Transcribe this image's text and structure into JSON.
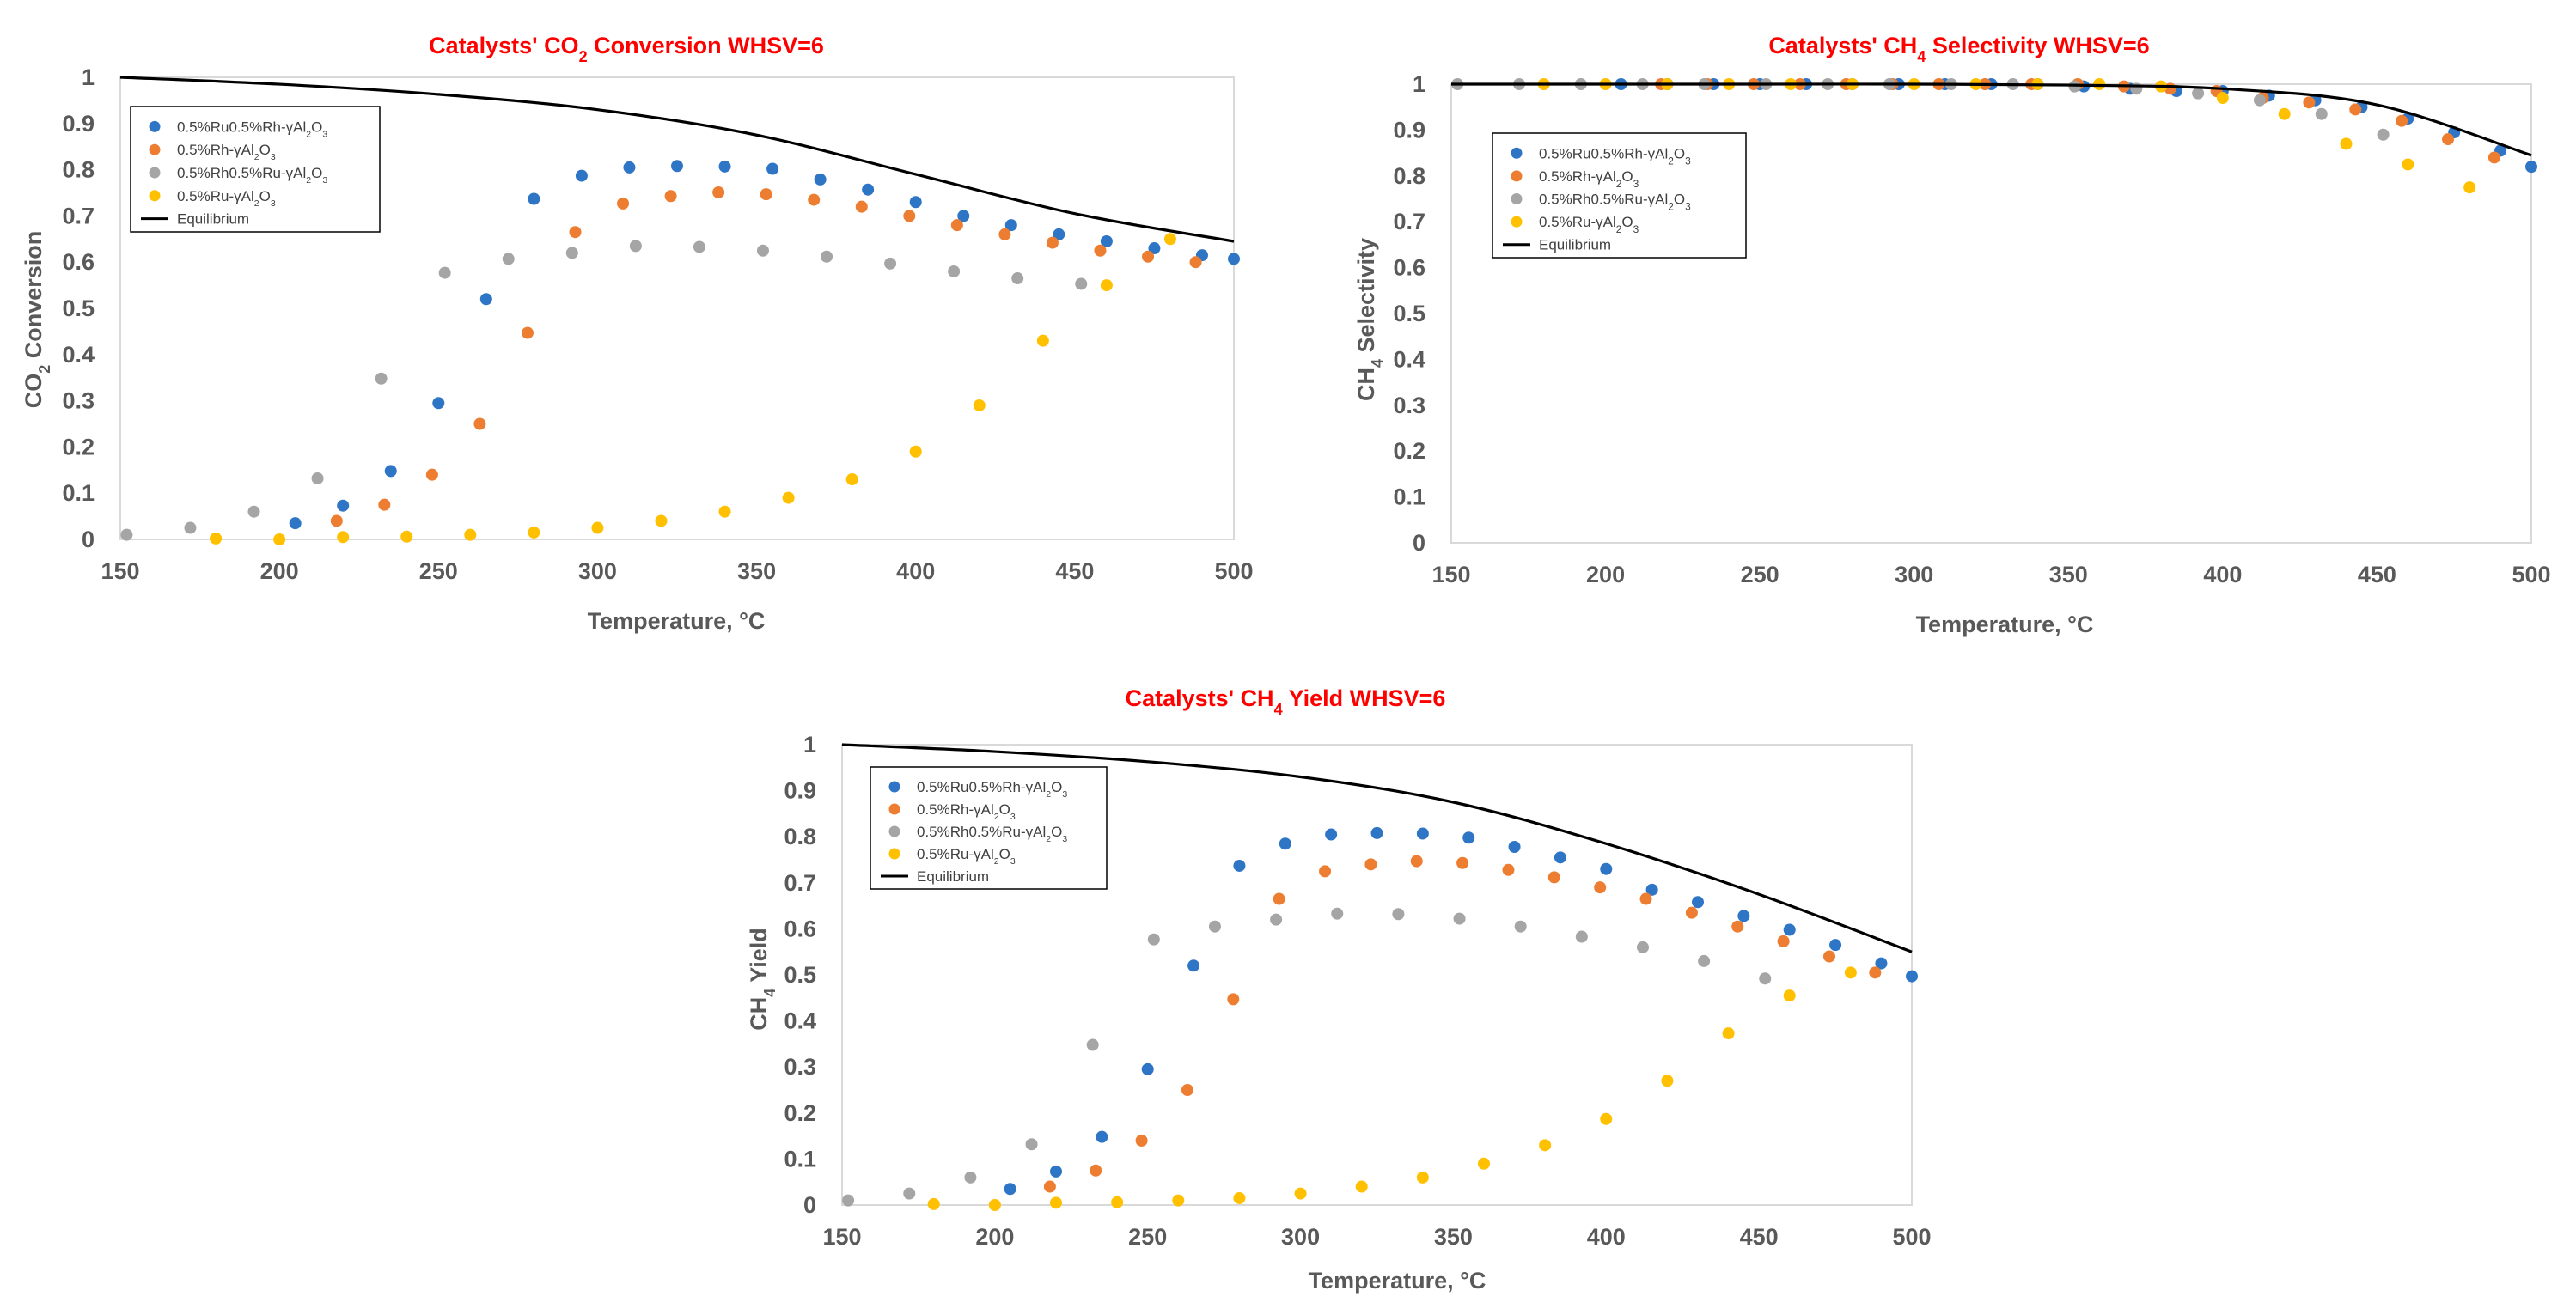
{
  "colors": {
    "s1": "#2e75c6",
    "s2": "#ed7d31",
    "s3": "#a5a5a5",
    "s4": "#ffc000",
    "eq": "#000000",
    "title": "#ff0000",
    "axis": "#d9d9d9",
    "text": "#595959"
  },
  "legend_labels": [
    {
      "prefix": "0.5%Ru0.5%Rh-γAl",
      "sub1": "2",
      "mid": "O",
      "sub2": "3"
    },
    {
      "prefix": "0.5%Rh-γAl",
      "sub1": "2",
      "mid": "O",
      "sub2": "3"
    },
    {
      "prefix": "0.5%Rh0.5%Ru-γAl",
      "sub1": "2",
      "mid": "O",
      "sub2": "3"
    },
    {
      "prefix": "0.5%Ru-γAl",
      "sub1": "2",
      "mid": "O",
      "sub2": "3"
    },
    {
      "prefix": "Equilibrium",
      "sub1": "",
      "mid": "",
      "sub2": ""
    }
  ],
  "chart_data": [
    {
      "type": "scatter",
      "title": {
        "pre": "Catalysts' CO",
        "sub": "2",
        "post": " Conversion WHSV=6"
      },
      "xlabel": "Temperature, °C",
      "ylabel": {
        "pre": "CO",
        "sub": "2",
        "post": " Conversion"
      },
      "xlim": [
        150,
        500
      ],
      "ylim": [
        0,
        1
      ],
      "xticks": [
        "150",
        "200",
        "250",
        "300",
        "350",
        "400",
        "450",
        "500"
      ],
      "yticks": [
        "0",
        "0.1",
        "0.2",
        "0.3",
        "0.4",
        "0.5",
        "0.6",
        "0.7",
        "0.8",
        "0.9",
        "1"
      ],
      "series": [
        {
          "name": "0.5%Ru0.5%Rh-γAl2O3",
          "x": [
            205,
            220,
            235,
            250,
            265,
            280,
            295,
            310,
            325,
            340,
            355,
            370,
            385,
            400,
            415,
            430,
            445,
            460,
            475,
            490,
            500
          ],
          "y": [
            0.035,
            0.073,
            0.148,
            0.295,
            0.52,
            0.737,
            0.787,
            0.805,
            0.808,
            0.807,
            0.802,
            0.779,
            0.757,
            0.73,
            0.7,
            0.68,
            0.66,
            0.645,
            0.63,
            0.615,
            0.607
          ]
        },
        {
          "name": "0.5%Rh-γAl2O3",
          "x": [
            218,
            233,
            248,
            263,
            278,
            293,
            308,
            323,
            338,
            353,
            368,
            383,
            398,
            413,
            428,
            443,
            458,
            473,
            488
          ],
          "y": [
            0.04,
            0.075,
            0.14,
            0.25,
            0.447,
            0.665,
            0.727,
            0.743,
            0.751,
            0.747,
            0.735,
            0.72,
            0.7,
            0.68,
            0.66,
            0.642,
            0.625,
            0.612,
            0.6
          ]
        },
        {
          "name": "0.5%Rh0.5%Ru-γAl2O3",
          "x": [
            152,
            172,
            192,
            212,
            232,
            252,
            272,
            292,
            312,
            332,
            352,
            372,
            392,
            412,
            432,
            452
          ],
          "y": [
            0.01,
            0.025,
            0.06,
            0.132,
            0.348,
            0.577,
            0.607,
            0.62,
            0.635,
            0.633,
            0.625,
            0.612,
            0.597,
            0.58,
            0.565,
            0.553
          ]
        },
        {
          "name": "0.5%Ru-γAl2O3",
          "x": [
            180,
            200,
            220,
            240,
            260,
            280,
            300,
            320,
            340,
            360,
            380,
            400,
            420,
            440,
            460,
            480
          ],
          "y": [
            0.002,
            0.0,
            0.005,
            0.006,
            0.01,
            0.015,
            0.025,
            0.04,
            0.06,
            0.09,
            0.13,
            0.19,
            0.29,
            0.43,
            0.55,
            0.65
          ]
        },
        {
          "name": "Equilibrium",
          "x": [
            150,
            200,
            250,
            300,
            350,
            400,
            450,
            500
          ],
          "y": [
            1.0,
            0.985,
            0.963,
            0.93,
            0.875,
            0.79,
            0.705,
            0.645
          ]
        }
      ]
    },
    {
      "type": "scatter",
      "title": {
        "pre": "Catalysts' CH",
        "sub": "4",
        "post": " Selectivity WHSV=6"
      },
      "xlabel": "Temperature, °C",
      "ylabel": {
        "pre": "CH",
        "sub": "4",
        "post": " Selectivity"
      },
      "xlim": [
        150,
        500
      ],
      "ylim": [
        0,
        1
      ],
      "xticks": [
        "150",
        "200",
        "250",
        "300",
        "350",
        "400",
        "450",
        "500"
      ],
      "yticks": [
        "0",
        "0.1",
        "0.2",
        "0.3",
        "0.4",
        "0.5",
        "0.6",
        "0.7",
        "0.8",
        "0.9",
        "1"
      ],
      "series": [
        {
          "name": "0.5%Ru0.5%Rh-γAl2O3",
          "x": [
            205,
            220,
            235,
            250,
            265,
            280,
            295,
            310,
            325,
            340,
            355,
            370,
            385,
            400,
            415,
            430,
            445,
            460,
            475,
            490,
            500
          ],
          "y": [
            1,
            1,
            1,
            1,
            1,
            1,
            1,
            1,
            1,
            1,
            0.995,
            0.99,
            0.985,
            0.985,
            0.975,
            0.965,
            0.95,
            0.925,
            0.895,
            0.855,
            0.82
          ]
        },
        {
          "name": "0.5%Rh-γAl2O3",
          "x": [
            218,
            233,
            248,
            263,
            278,
            293,
            308,
            323,
            338,
            353,
            368,
            383,
            398,
            413,
            428,
            443,
            458,
            473,
            488
          ],
          "y": [
            1,
            1,
            1,
            1,
            1,
            1,
            1,
            1,
            1,
            1,
            0.995,
            0.99,
            0.985,
            0.97,
            0.96,
            0.945,
            0.92,
            0.88,
            0.84
          ]
        },
        {
          "name": "0.5%Rh0.5%Ru-γAl2O3",
          "x": [
            152,
            172,
            192,
            212,
            232,
            252,
            272,
            292,
            312,
            332,
            352,
            372,
            392,
            412,
            432,
            452
          ],
          "y": [
            1,
            1,
            1,
            1,
            1,
            1,
            1,
            1,
            1,
            1,
            0.995,
            0.99,
            0.98,
            0.965,
            0.935,
            0.89
          ]
        },
        {
          "name": "0.5%Ru-γAl2O3",
          "x": [
            180,
            200,
            220,
            240,
            260,
            280,
            300,
            320,
            340,
            360,
            380,
            400,
            420,
            440,
            460,
            480
          ],
          "y": [
            1,
            1,
            1,
            1,
            1,
            1,
            1,
            1,
            1,
            1,
            0.995,
            0.97,
            0.935,
            0.87,
            0.825,
            0.775
          ]
        },
        {
          "name": "Equilibrium",
          "x": [
            150,
            200,
            250,
            300,
            350,
            400,
            450,
            500
          ],
          "y": [
            1.0,
            1.0,
            1.0,
            1.0,
            0.998,
            0.99,
            0.955,
            0.845
          ]
        }
      ]
    },
    {
      "type": "scatter",
      "title": {
        "pre": "Catalysts' CH",
        "sub": "4",
        "post": " Yield WHSV=6"
      },
      "xlabel": "Temperature, °C",
      "ylabel": {
        "pre": "CH",
        "sub": "4",
        "post": " Yield"
      },
      "xlim": [
        150,
        500
      ],
      "ylim": [
        0,
        1
      ],
      "xticks": [
        "150",
        "200",
        "250",
        "300",
        "350",
        "400",
        "450",
        "500"
      ],
      "yticks": [
        "0",
        "0.1",
        "0.2",
        "0.3",
        "0.4",
        "0.5",
        "0.6",
        "0.7",
        "0.8",
        "0.9",
        "1"
      ],
      "series": [
        {
          "name": "0.5%Ru0.5%Rh-γAl2O3",
          "x": [
            205,
            220,
            235,
            250,
            265,
            280,
            295,
            310,
            325,
            340,
            355,
            370,
            385,
            400,
            415,
            430,
            445,
            460,
            475,
            490,
            500
          ],
          "y": [
            0.035,
            0.073,
            0.148,
            0.295,
            0.52,
            0.737,
            0.785,
            0.805,
            0.808,
            0.807,
            0.798,
            0.778,
            0.755,
            0.73,
            0.685,
            0.658,
            0.628,
            0.598,
            0.565,
            0.525,
            0.497
          ]
        },
        {
          "name": "0.5%Rh-γAl2O3",
          "x": [
            218,
            233,
            248,
            263,
            278,
            293,
            308,
            323,
            338,
            353,
            368,
            383,
            398,
            413,
            428,
            443,
            458,
            473,
            488
          ],
          "y": [
            0.04,
            0.075,
            0.14,
            0.25,
            0.447,
            0.665,
            0.725,
            0.74,
            0.747,
            0.743,
            0.728,
            0.712,
            0.69,
            0.665,
            0.635,
            0.605,
            0.573,
            0.54,
            0.505
          ]
        },
        {
          "name": "0.5%Rh0.5%Ru-γAl2O3",
          "x": [
            152,
            172,
            192,
            212,
            232,
            252,
            272,
            292,
            312,
            332,
            352,
            372,
            392,
            412,
            432,
            452
          ],
          "y": [
            0.01,
            0.025,
            0.06,
            0.132,
            0.348,
            0.577,
            0.605,
            0.62,
            0.633,
            0.632,
            0.622,
            0.605,
            0.583,
            0.56,
            0.53,
            0.492
          ]
        },
        {
          "name": "0.5%Ru-γAl2O3",
          "x": [
            180,
            200,
            220,
            240,
            260,
            280,
            300,
            320,
            340,
            360,
            380,
            400,
            420,
            440,
            460,
            480
          ],
          "y": [
            0.002,
            0.0,
            0.005,
            0.006,
            0.01,
            0.015,
            0.025,
            0.04,
            0.06,
            0.09,
            0.13,
            0.187,
            0.27,
            0.373,
            0.455,
            0.505
          ]
        },
        {
          "name": "Equilibrium",
          "x": [
            150,
            200,
            250,
            300,
            350,
            400,
            450,
            500
          ],
          "y": [
            1.0,
            0.985,
            0.963,
            0.93,
            0.875,
            0.785,
            0.675,
            0.55
          ]
        }
      ]
    }
  ]
}
